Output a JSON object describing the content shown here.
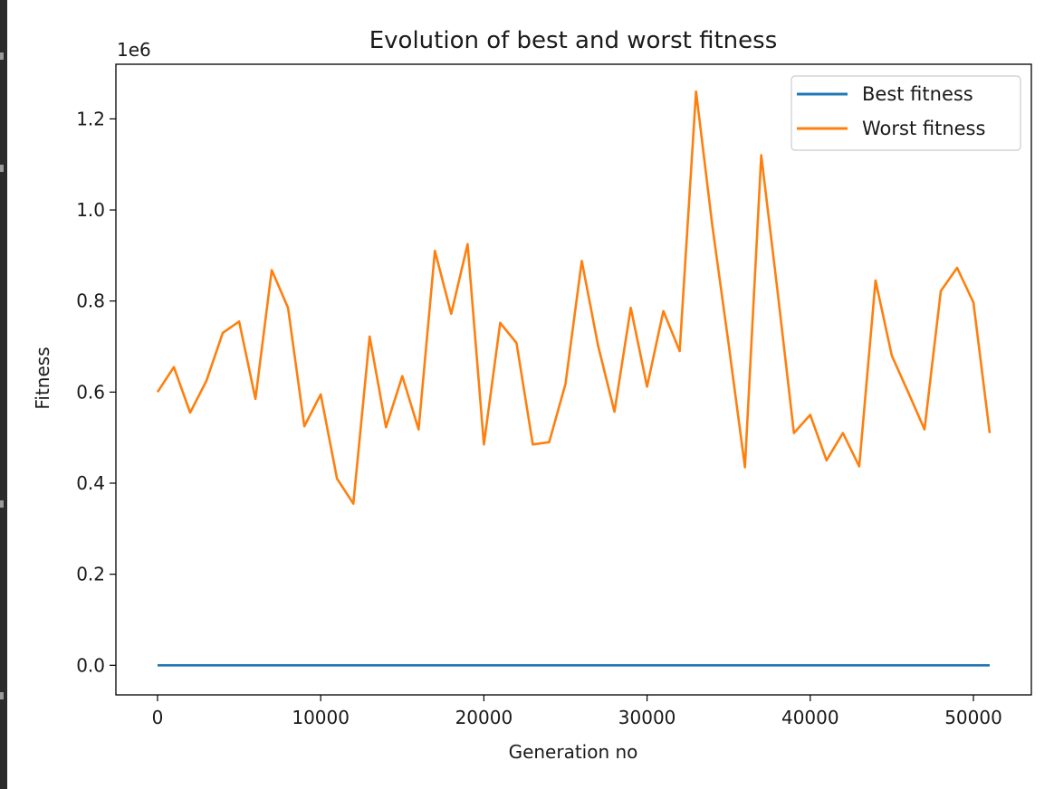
{
  "chart_data": {
    "type": "line",
    "title": "Evolution of best and worst fitness",
    "xlabel": "Generation no",
    "ylabel": "Fitness",
    "y_offset_text": "1e6",
    "y_multiplier": 1000000,
    "xlim": [
      -2550,
      53550
    ],
    "ylim": [
      -0.065,
      1.32
    ],
    "x_ticks": [
      0,
      10000,
      20000,
      30000,
      40000,
      50000
    ],
    "x_tick_labels": [
      "0",
      "10000",
      "20000",
      "30000",
      "40000",
      "50000"
    ],
    "y_ticks": [
      0.0,
      0.2,
      0.4,
      0.6,
      0.8,
      1.0,
      1.2
    ],
    "y_tick_labels": [
      "0.0",
      "0.2",
      "0.4",
      "0.6",
      "0.8",
      "1.0",
      "1.2"
    ],
    "grid": false,
    "legend_position": "upper right",
    "x": [
      0,
      1000,
      2000,
      3000,
      4000,
      5000,
      6000,
      7000,
      8000,
      9000,
      10000,
      11000,
      12000,
      13000,
      14000,
      15000,
      16000,
      17000,
      18000,
      19000,
      20000,
      21000,
      22000,
      23000,
      24000,
      25000,
      26000,
      27000,
      28000,
      29000,
      30000,
      31000,
      32000,
      33000,
      34000,
      35000,
      36000,
      37000,
      38000,
      39000,
      40000,
      41000,
      42000,
      43000,
      44000,
      45000,
      46000,
      47000,
      48000,
      49000,
      50000,
      51000
    ],
    "series": [
      {
        "name": "Best fitness",
        "color": "#1f77b4",
        "values": [
          0,
          0,
          0,
          0,
          0,
          0,
          0,
          0,
          0,
          0,
          0,
          0,
          0,
          0,
          0,
          0,
          0,
          0,
          0,
          0,
          0,
          0,
          0,
          0,
          0,
          0,
          0,
          0,
          0,
          0,
          0,
          0,
          0,
          0,
          0,
          0,
          0,
          0,
          0,
          0,
          0,
          0,
          0,
          0,
          0,
          0,
          0,
          0,
          0,
          0,
          0,
          0
        ]
      },
      {
        "name": "Worst fitness",
        "color": "#ff7f0e",
        "values": [
          0.6,
          0.655,
          0.555,
          0.625,
          0.73,
          0.755,
          0.585,
          0.868,
          0.785,
          0.525,
          0.595,
          0.41,
          0.355,
          0.722,
          0.523,
          0.635,
          0.518,
          0.91,
          0.772,
          0.925,
          0.485,
          0.752,
          0.708,
          0.485,
          0.49,
          0.618,
          0.888,
          0.702,
          0.557,
          0.785,
          0.612,
          0.778,
          0.69,
          1.26,
          0.965,
          0.705,
          0.435,
          1.12,
          0.82,
          0.51,
          0.55,
          0.45,
          0.51,
          0.437,
          0.845,
          0.68,
          0.6,
          0.518,
          0.822,
          0.873,
          0.797,
          0.51
        ]
      }
    ]
  }
}
